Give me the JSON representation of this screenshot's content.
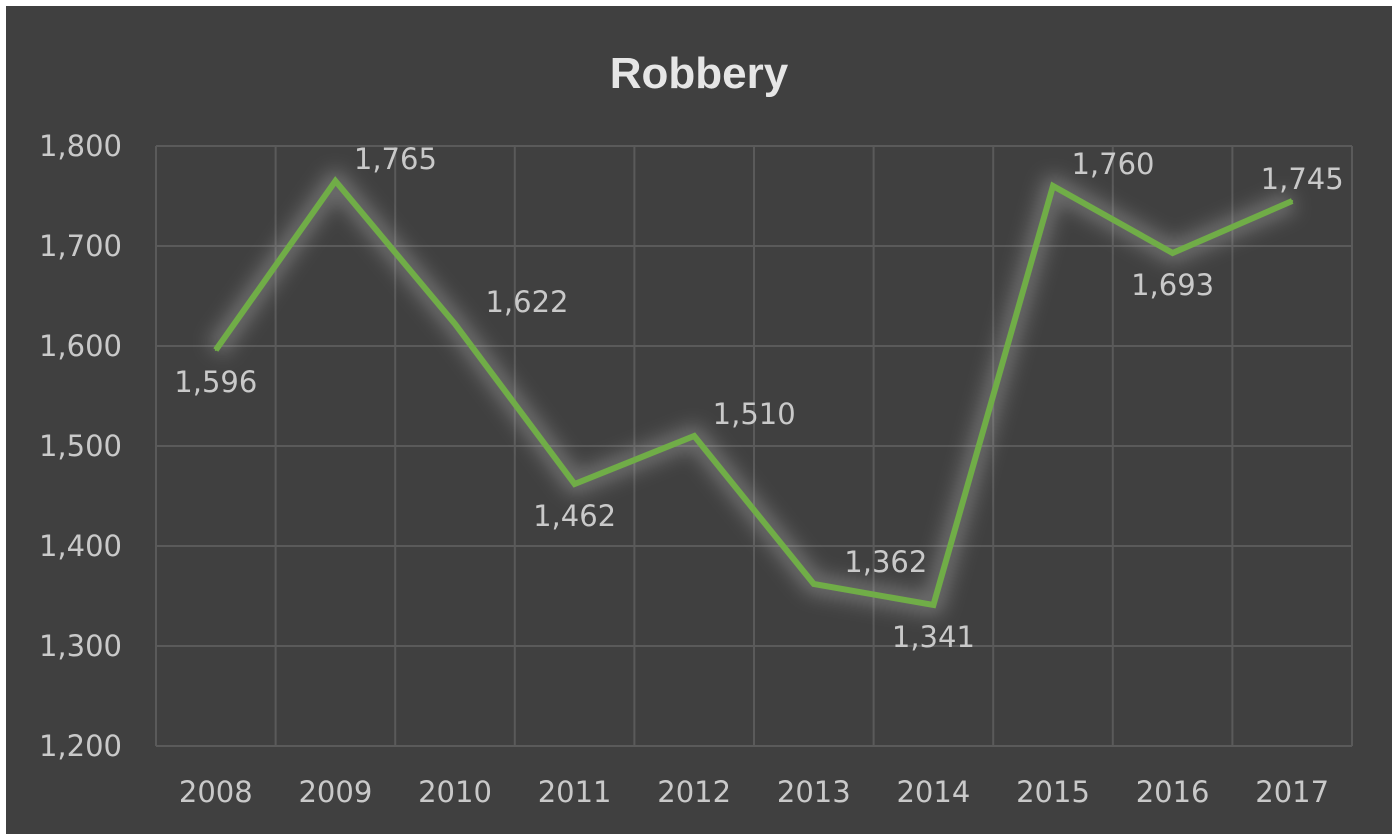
{
  "chart_data": {
    "type": "line",
    "title": "Robbery",
    "xlabel": "",
    "ylabel": "",
    "categories": [
      "2008",
      "2009",
      "2010",
      "2011",
      "2012",
      "2013",
      "2014",
      "2015",
      "2016",
      "2017"
    ],
    "series": [
      {
        "values": [
          1596,
          1765,
          1622,
          1462,
          1510,
          1362,
          1341,
          1760,
          1693,
          1745
        ],
        "value_labels": [
          "1,596",
          "1,765",
          "1,622",
          "1,462",
          "1,510",
          "1,362",
          "1,341",
          "1,760",
          "1,693",
          "1,745"
        ],
        "color": "#70ad47"
      }
    ],
    "ylim": [
      1200,
      1800
    ],
    "yticks": [
      1200,
      1300,
      1400,
      1500,
      1600,
      1700,
      1800
    ],
    "ytick_labels": [
      "1,200",
      "1,300",
      "1,400",
      "1,500",
      "1,600",
      "1,700",
      "1,800"
    ],
    "grid": true,
    "legend": "none",
    "colors": {
      "background": "#404040",
      "grid": "#5a5a5a",
      "text": "#c9c9c9",
      "title": "#e6e6e6"
    }
  }
}
